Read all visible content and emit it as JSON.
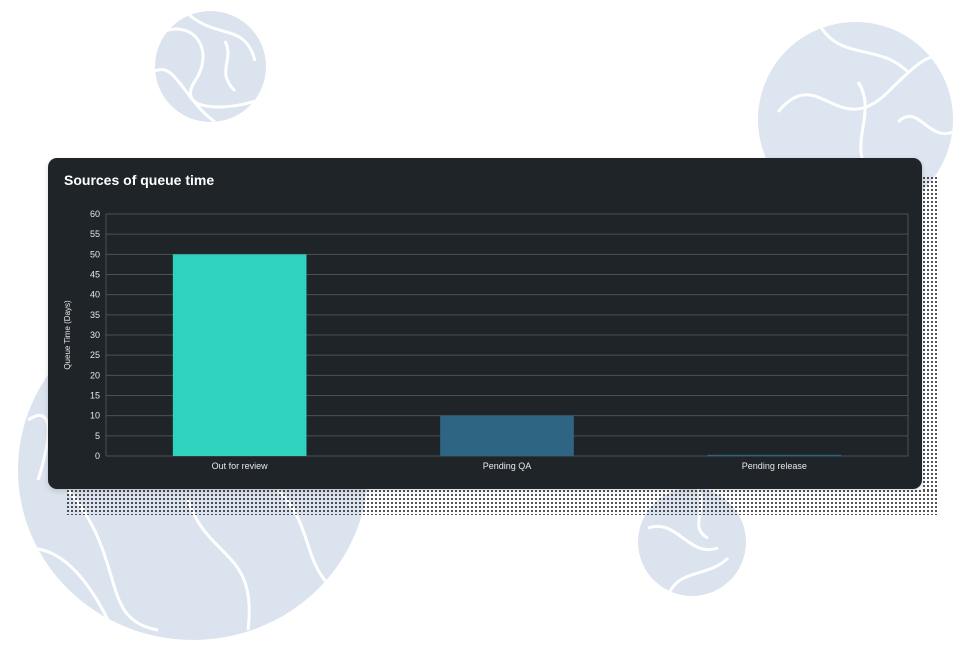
{
  "card": {
    "title": "Sources of queue time"
  },
  "chart_data": {
    "type": "bar",
    "title": "Sources of queue time",
    "xlabel": "",
    "ylabel": "Queue Time (Days)",
    "categories": [
      "Out for review",
      "Pending QA",
      "Pending release"
    ],
    "values": [
      50,
      10,
      0.3
    ],
    "bar_colors": [
      "#2fd1bf",
      "#2d6583",
      "#2d6583"
    ],
    "ylim": [
      0,
      60
    ],
    "yticks": [
      0,
      5,
      10,
      15,
      20,
      25,
      30,
      35,
      40,
      45,
      50,
      55,
      60
    ],
    "grid": true,
    "legend": "none"
  },
  "colors": {
    "card_background": "#1f2428",
    "grid_line": "#4a5158",
    "text": "#e6e8ea",
    "decoration_blob": "#d9e2ef"
  }
}
